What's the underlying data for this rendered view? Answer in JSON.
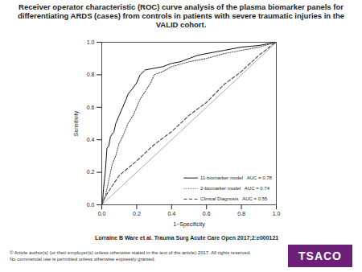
{
  "chart_data": {
    "type": "line",
    "title": "Receiver operator characteristic (ROC) curve analysis of the plasma biomarker panels for differentiating ARDS (cases) from controls in patients with severe traumatic injuries in the VALID cohort.",
    "x_label": "1−Specificity",
    "y_label": "Sensitivity",
    "xlim": [
      0,
      1
    ],
    "ylim": [
      0,
      1
    ],
    "xticks": [
      {
        "value": 0,
        "label": "0.0"
      },
      {
        "value": 0.2,
        "label": "0.2"
      },
      {
        "value": 0.4,
        "label": "0.4"
      },
      {
        "value": 0.6,
        "label": "0.6"
      },
      {
        "value": 0.8,
        "label": "0.8"
      },
      {
        "value": 1,
        "label": "1.0"
      }
    ],
    "yticks": [
      {
        "value": 0,
        "label": "0.0"
      },
      {
        "value": 0.2,
        "label": "0.2"
      },
      {
        "value": 0.4,
        "label": "0.4"
      },
      {
        "value": 0.6,
        "label": "0.6"
      },
      {
        "value": 0.8,
        "label": "0.8"
      },
      {
        "value": 1,
        "label": "1.0"
      }
    ],
    "grid": false,
    "legend": "lower right",
    "reference_line": {
      "x": [
        0,
        1
      ],
      "values": [
        0,
        1
      ],
      "color": "#888888",
      "line_style": "solid"
    },
    "series": [
      {
        "name": "11-biomarker model   AUC = 0.78",
        "color": "#111111",
        "line_style": "solid",
        "x": [
          0,
          0.005,
          0.01,
          0.02,
          0.03,
          0.04,
          0.05,
          0.07,
          0.08,
          0.1,
          0.12,
          0.14,
          0.15,
          0.18,
          0.2,
          0.22,
          0.25,
          0.3,
          0.35,
          0.4,
          0.45,
          0.5,
          0.55,
          0.6,
          0.7,
          0.8,
          0.9,
          1
        ],
        "values": [
          0,
          0.02,
          0.1,
          0.2,
          0.35,
          0.36,
          0.42,
          0.45,
          0.5,
          0.55,
          0.6,
          0.65,
          0.68,
          0.72,
          0.75,
          0.8,
          0.83,
          0.84,
          0.85,
          0.87,
          0.88,
          0.9,
          0.92,
          0.93,
          0.95,
          0.97,
          0.98,
          1
        ]
      },
      {
        "name": "2-biomarker model   AUC = 0.74",
        "color": "#555555",
        "line_style": "dotted",
        "x": [
          0,
          0.02,
          0.04,
          0.06,
          0.08,
          0.1,
          0.12,
          0.15,
          0.18,
          0.2,
          0.22,
          0.25,
          0.28,
          0.3,
          0.35,
          0.4,
          0.5,
          0.6,
          0.7,
          0.8,
          0.9,
          1
        ],
        "values": [
          0,
          0.05,
          0.15,
          0.25,
          0.3,
          0.38,
          0.42,
          0.5,
          0.55,
          0.6,
          0.65,
          0.7,
          0.75,
          0.8,
          0.82,
          0.85,
          0.88,
          0.9,
          0.93,
          0.95,
          0.97,
          1
        ]
      },
      {
        "name": "Clinical Diagnosis   AUC = 0.55",
        "color": "#444444",
        "line_style": "dashed",
        "x": [
          0,
          0.02,
          0.05,
          0.1,
          0.2,
          0.3,
          0.4,
          0.5,
          0.6,
          0.7,
          0.8,
          0.9,
          0.95,
          0.97,
          1
        ],
        "values": [
          0,
          0.05,
          0.1,
          0.18,
          0.27,
          0.37,
          0.45,
          0.55,
          0.63,
          0.74,
          0.82,
          0.92,
          0.96,
          0.98,
          1
        ]
      }
    ]
  },
  "slide": {
    "citation": "Lorraine B Ware et al. Trauma Surg Acute Care Open 2017;2:e000121",
    "copyright": "© Article author(s) (or their employer(s) unless otherwise stated in the text of the article) 2017. All rights reserved. No commercial use is permitted unless otherwise expressly granted.",
    "logo": "TSACO"
  }
}
